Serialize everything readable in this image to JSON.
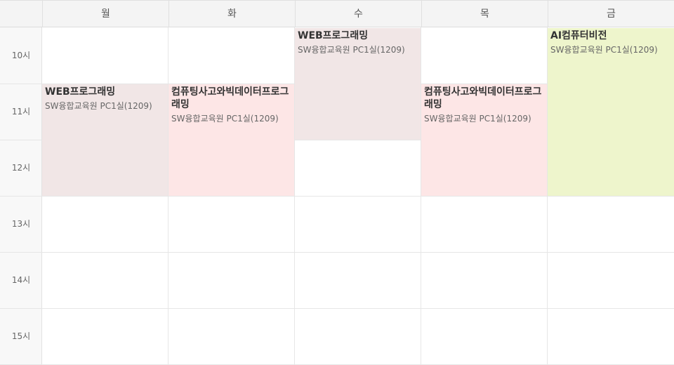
{
  "header": {
    "days": [
      "월",
      "화",
      "수",
      "목",
      "금"
    ]
  },
  "times": [
    "10시",
    "11시",
    "12시",
    "13시",
    "14시",
    "15시"
  ],
  "colors": {
    "mauve": "#f1e6e6",
    "pink": "#fde6e6",
    "lime": "#eef5cc"
  },
  "events": [
    {
      "day": "월",
      "title": "WEB프로그래밍",
      "room": "SW융합교육원 PC1실(1209)",
      "color": "mauve"
    },
    {
      "day": "화",
      "title": "컴퓨팅사고와빅데이터프로그래밍",
      "room": "SW융합교육원 PC1실(1209)",
      "color": "pink"
    },
    {
      "day": "수",
      "title": "WEB프로그래밍",
      "room": "SW융합교육원 PC1실(1209)",
      "color": "mauve"
    },
    {
      "day": "목",
      "title": "컴퓨팅사고와빅데이터프로그래밍",
      "room": "SW융합교육원 PC1실(1209)",
      "color": "pink"
    },
    {
      "day": "금",
      "title": "AI컴퓨터비전",
      "room": "SW융합교육원 PC1실(1209)",
      "color": "lime"
    }
  ]
}
